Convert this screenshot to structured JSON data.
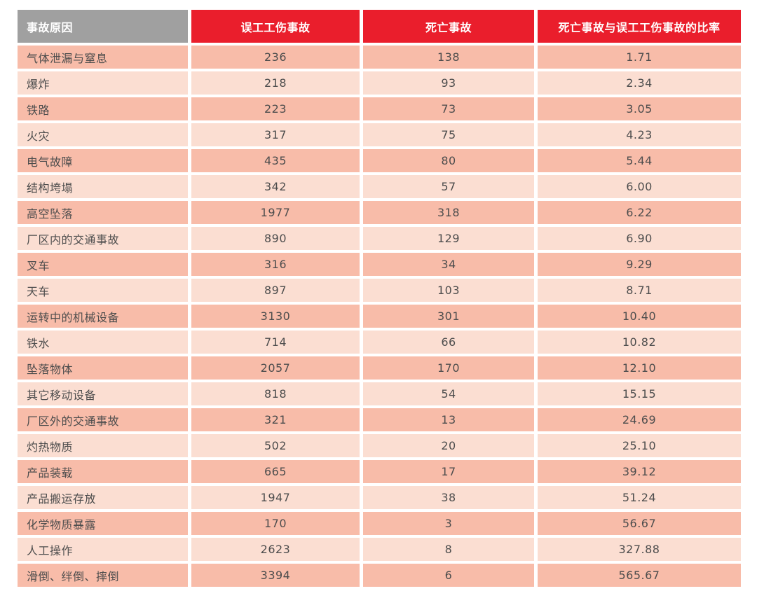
{
  "colors": {
    "header_gray": "#a0a0a0",
    "header_red": "#ea1e2c",
    "row_odd_pink": "#f8bca9",
    "row_even_pink": "#fbded2",
    "cell_text": "#4d4d4d",
    "header_text": "#ffffff"
  },
  "table": {
    "columns": [
      {
        "label": "事故原因"
      },
      {
        "label": "误工工伤事故"
      },
      {
        "label": "死亡事故"
      },
      {
        "label": "死亡事故与误工工伤事故的比率"
      }
    ],
    "rows": [
      {
        "cause": "气体泄漏与窒息",
        "lost_time": "236",
        "fatal": "138",
        "ratio": "1.71"
      },
      {
        "cause": "爆炸",
        "lost_time": "218",
        "fatal": "93",
        "ratio": "2.34"
      },
      {
        "cause": "铁路",
        "lost_time": "223",
        "fatal": "73",
        "ratio": "3.05"
      },
      {
        "cause": "火灾",
        "lost_time": "317",
        "fatal": "75",
        "ratio": "4.23"
      },
      {
        "cause": "电气故障",
        "lost_time": "435",
        "fatal": "80",
        "ratio": "5.44"
      },
      {
        "cause": "结构垮塌",
        "lost_time": "342",
        "fatal": "57",
        "ratio": "6.00"
      },
      {
        "cause": "高空坠落",
        "lost_time": "1977",
        "fatal": "318",
        "ratio": "6.22"
      },
      {
        "cause": "厂区内的交通事故",
        "lost_time": "890",
        "fatal": "129",
        "ratio": "6.90"
      },
      {
        "cause": "叉车",
        "lost_time": "316",
        "fatal": "34",
        "ratio": "9.29"
      },
      {
        "cause": "天车",
        "lost_time": "897",
        "fatal": "103",
        "ratio": "8.71"
      },
      {
        "cause": "运转中的机械设备",
        "lost_time": "3130",
        "fatal": "301",
        "ratio": "10.40"
      },
      {
        "cause": "铁水",
        "lost_time": "714",
        "fatal": "66",
        "ratio": "10.82"
      },
      {
        "cause": "坠落物体",
        "lost_time": "2057",
        "fatal": "170",
        "ratio": "12.10"
      },
      {
        "cause": "其它移动设备",
        "lost_time": "818",
        "fatal": "54",
        "ratio": "15.15"
      },
      {
        "cause": "厂区外的交通事故",
        "lost_time": "321",
        "fatal": "13",
        "ratio": "24.69"
      },
      {
        "cause": "灼热物质",
        "lost_time": "502",
        "fatal": "20",
        "ratio": "25.10"
      },
      {
        "cause": "产品装载",
        "lost_time": "665",
        "fatal": "17",
        "ratio": "39.12"
      },
      {
        "cause": "产品搬运存放",
        "lost_time": "1947",
        "fatal": "38",
        "ratio": "51.24"
      },
      {
        "cause": "化学物质暴露",
        "lost_time": "170",
        "fatal": "3",
        "ratio": "56.67"
      },
      {
        "cause": "人工操作",
        "lost_time": "2623",
        "fatal": "8",
        "ratio": "327.88"
      },
      {
        "cause": "滑倒、绊倒、摔倒",
        "lost_time": "3394",
        "fatal": "6",
        "ratio": "565.67"
      }
    ]
  },
  "chart_data": {
    "type": "table",
    "title": "",
    "columns": [
      "事故原因",
      "误工工伤事故",
      "死亡事故",
      "死亡事故与误工工伤事故的比率"
    ],
    "rows": [
      [
        "气体泄漏与窒息",
        236,
        138,
        1.71
      ],
      [
        "爆炸",
        218,
        93,
        2.34
      ],
      [
        "铁路",
        223,
        73,
        3.05
      ],
      [
        "火灾",
        317,
        75,
        4.23
      ],
      [
        "电气故障",
        435,
        80,
        5.44
      ],
      [
        "结构垮塌",
        342,
        57,
        6.0
      ],
      [
        "高空坠落",
        1977,
        318,
        6.22
      ],
      [
        "厂区内的交通事故",
        890,
        129,
        6.9
      ],
      [
        "叉车",
        316,
        34,
        9.29
      ],
      [
        "天车",
        897,
        103,
        8.71
      ],
      [
        "运转中的机械设备",
        3130,
        301,
        10.4
      ],
      [
        "铁水",
        714,
        66,
        10.82
      ],
      [
        "坠落物体",
        2057,
        170,
        12.1
      ],
      [
        "其它移动设备",
        818,
        54,
        15.15
      ],
      [
        "厂区外的交通事故",
        321,
        13,
        24.69
      ],
      [
        "灼热物质",
        502,
        20,
        25.1
      ],
      [
        "产品装载",
        665,
        17,
        39.12
      ],
      [
        "产品搬运存放",
        1947,
        38,
        51.24
      ],
      [
        "化学物质暴露",
        170,
        3,
        56.67
      ],
      [
        "人工操作",
        2623,
        8,
        327.88
      ],
      [
        "滑倒、绊倒、摔倒",
        3394,
        6,
        565.67
      ]
    ]
  }
}
